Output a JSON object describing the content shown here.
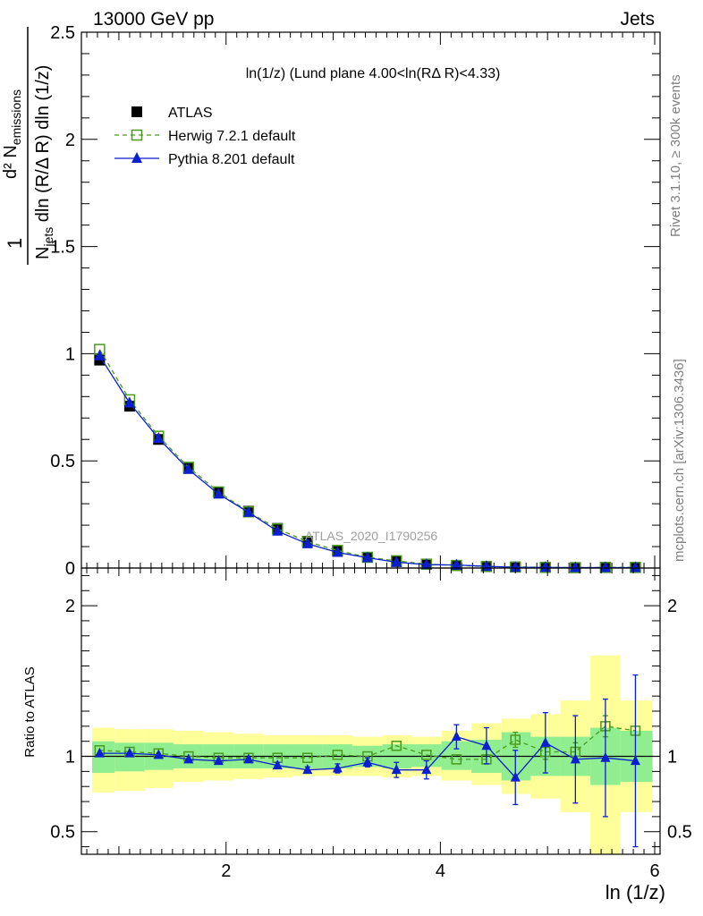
{
  "header": {
    "left": "13000 GeV pp",
    "right": "Jets"
  },
  "side_labels": {
    "rivet": "Rivet 3.1.10, ≥ 300k events",
    "mcplots": "mcplots.cern.ch [arXiv:1306.3436]"
  },
  "watermark": "ATLAS_2020_I1790256",
  "chart_data": [
    {
      "type": "scatter",
      "panel": "main",
      "title": "ln(1/z) (Lund plane 4.00<ln(RΔ R)<4.33)",
      "ylabel_parts": {
        "one": "1",
        "dnum": "d² N",
        "dnum_sub": "emissions",
        "den_n": "N",
        "den_sub": "jets",
        "den_rest": " dln (R/Δ R) dln (1/z)"
      },
      "xlim": [
        0.65,
        6.05
      ],
      "ylim": [
        0,
        2.5
      ],
      "yticks": [
        "0",
        "0.5",
        "1",
        "1.5",
        "2",
        "2.5"
      ],
      "legend_position": "top-left",
      "series": [
        {
          "name": "ATLAS",
          "marker": "filled-square",
          "color": "#000000",
          "x": [
            0.82,
            1.1,
            1.37,
            1.65,
            1.93,
            2.21,
            2.48,
            2.76,
            3.04,
            3.32,
            3.59,
            3.87,
            4.15,
            4.43,
            4.7,
            4.98,
            5.26,
            5.54,
            5.82
          ],
          "y": [
            0.97,
            0.755,
            0.6,
            0.465,
            0.355,
            0.265,
            0.185,
            0.125,
            0.08,
            0.05,
            0.03,
            0.018,
            0.012,
            0.007,
            0.004,
            0.003,
            0.002,
            0.002,
            0.002
          ]
        },
        {
          "name": "Herwig 7.2.1 default",
          "marker": "open-square",
          "line": "dashed",
          "color": "#4a9a1e",
          "x": [
            0.82,
            1.1,
            1.37,
            1.65,
            1.93,
            2.21,
            2.48,
            2.76,
            3.04,
            3.32,
            3.59,
            3.87,
            4.15,
            4.43,
            4.7,
            4.98,
            5.26,
            5.54,
            5.82
          ],
          "y": [
            1.02,
            0.785,
            0.615,
            0.47,
            0.355,
            0.262,
            0.183,
            0.123,
            0.082,
            0.05,
            0.034,
            0.018,
            0.012,
            0.007,
            0.005,
            0.003,
            0.002,
            0.003,
            0.003
          ]
        },
        {
          "name": "Pythia 8.201 default",
          "marker": "filled-triangle",
          "line": "solid",
          "color": "#0a1fcf",
          "x": [
            0.82,
            1.1,
            1.37,
            1.65,
            1.93,
            2.21,
            2.48,
            2.76,
            3.04,
            3.32,
            3.59,
            3.87,
            4.15,
            4.43,
            4.7,
            4.98,
            5.26,
            5.54,
            5.82
          ],
          "y": [
            0.99,
            0.77,
            0.605,
            0.46,
            0.345,
            0.26,
            0.172,
            0.113,
            0.073,
            0.048,
            0.027,
            0.016,
            0.014,
            0.008,
            0.003,
            0.003,
            0.002,
            0.002,
            0.002
          ]
        }
      ]
    },
    {
      "type": "scatter",
      "panel": "ratio",
      "ylabel": "Ratio to ATLAS",
      "xlabel": "ln (1/z)",
      "xlim": [
        0.65,
        6.05
      ],
      "ylim": [
        0.35,
        2.25
      ],
      "xticks": [
        "2",
        "4",
        "6"
      ],
      "yticks": [
        "0.5",
        "1",
        "2"
      ],
      "bands": {
        "x_edges": [
          0.75,
          0.96,
          1.24,
          1.51,
          1.79,
          2.07,
          2.35,
          2.62,
          2.9,
          3.18,
          3.46,
          3.73,
          4.01,
          4.29,
          4.57,
          4.84,
          5.12,
          5.4,
          5.68,
          5.98
        ],
        "inner": {
          "color": "#90ee90",
          "low": [
            0.89,
            0.9,
            0.91,
            0.92,
            0.92,
            0.92,
            0.92,
            0.92,
            0.92,
            0.93,
            0.92,
            0.93,
            0.91,
            0.89,
            0.84,
            0.87,
            0.87,
            0.81,
            0.83
          ],
          "high": [
            1.1,
            1.09,
            1.09,
            1.08,
            1.08,
            1.08,
            1.08,
            1.08,
            1.08,
            1.07,
            1.08,
            1.08,
            1.1,
            1.11,
            1.16,
            1.13,
            1.13,
            1.19,
            1.17
          ]
        },
        "outer": {
          "color": "#ffff99",
          "low": [
            0.76,
            0.77,
            0.79,
            0.83,
            0.84,
            0.85,
            0.86,
            0.87,
            0.87,
            0.87,
            0.86,
            0.87,
            0.84,
            0.81,
            0.75,
            0.72,
            0.63,
            0.35,
            0.63
          ],
          "high": [
            1.19,
            1.18,
            1.18,
            1.17,
            1.16,
            1.15,
            1.14,
            1.14,
            1.14,
            1.13,
            1.14,
            1.13,
            1.17,
            1.22,
            1.25,
            1.28,
            1.37,
            1.67,
            1.37
          ]
        }
      },
      "series": [
        {
          "name": "Herwig 7.2.1 default",
          "color": "#4a9a1e",
          "x": [
            0.82,
            1.1,
            1.37,
            1.65,
            1.93,
            2.21,
            2.48,
            2.76,
            3.04,
            3.32,
            3.59,
            3.87,
            4.15,
            4.43,
            4.7,
            4.98,
            5.26,
            5.54,
            5.82
          ],
          "y": [
            1.04,
            1.03,
            1.02,
            1.0,
            0.99,
            0.99,
            0.99,
            0.99,
            1.01,
            1.0,
            1.07,
            1.01,
            0.98,
            0.98,
            1.11,
            1.03,
            1.03,
            1.2,
            1.17
          ],
          "err": [
            0,
            0,
            0,
            0,
            0,
            0,
            0,
            0,
            0,
            0,
            0,
            0,
            0,
            0,
            0.05,
            0.05,
            0.06,
            0.07,
            0.0
          ]
        },
        {
          "name": "Pythia 8.201 default",
          "color": "#0a1fcf",
          "x": [
            0.82,
            1.1,
            1.37,
            1.65,
            1.93,
            2.21,
            2.48,
            2.76,
            3.04,
            3.32,
            3.59,
            3.87,
            4.15,
            4.43,
            4.7,
            4.98,
            5.26,
            5.54,
            5.82
          ],
          "y": [
            1.02,
            1.02,
            1.01,
            0.98,
            0.97,
            0.98,
            0.94,
            0.91,
            0.92,
            0.96,
            0.91,
            0.91,
            1.13,
            1.07,
            0.86,
            1.09,
            0.98,
            0.99,
            0.97
          ],
          "err": [
            0,
            0,
            0,
            0,
            0,
            0.01,
            0.02,
            0.02,
            0.03,
            0.03,
            0.05,
            0.06,
            0.08,
            0.12,
            0.18,
            0.2,
            0.29,
            0.39,
            0.57
          ]
        }
      ]
    }
  ]
}
